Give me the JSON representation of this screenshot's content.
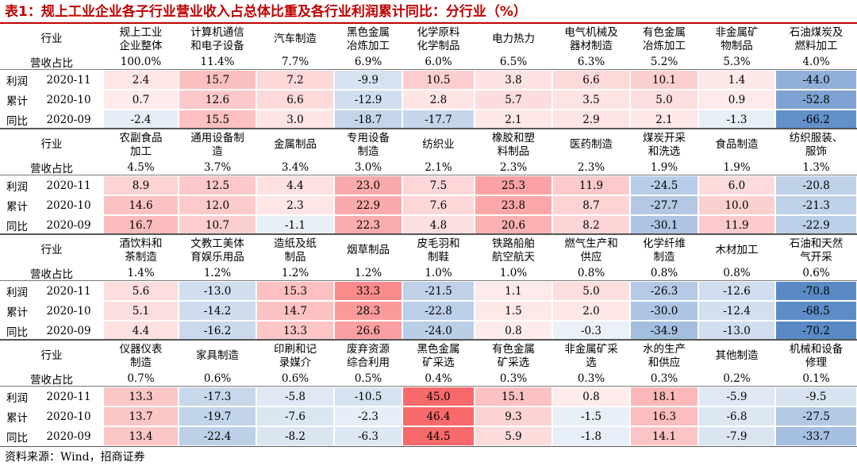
{
  "title": "表1：规上工业企业各子行业营业收入占总体比重及各行业利润累计同比：分行业（%）",
  "labels": {
    "industry": "行业",
    "revenue_share": "营收占比",
    "profit_label_lines": [
      "利润",
      "累计",
      "同比"
    ]
  },
  "months": [
    "2020-11",
    "2020-10",
    "2020-09"
  ],
  "colors": {
    "title": "#c00000",
    "positive": "#f8696b",
    "negative": "#5a8ac6"
  },
  "blocks": [
    {
      "industries": [
        "规上工业\n企业整体",
        "计算机通信\n和电子设备",
        "汽车制造",
        "黑色金属\n冶炼加工",
        "化学原料\n化学制品",
        "电力热力",
        "电气机械及\n器材制造",
        "有色金属\n冶炼加工",
        "非金属矿\n物制品",
        "石油煤炭及\n燃料加工"
      ],
      "shares": [
        "100.0%",
        "11.4%",
        "7.7%",
        "6.9%",
        "6.0%",
        "6.5%",
        "6.3%",
        "5.2%",
        "5.3%",
        "4.0%"
      ],
      "rows": [
        [
          "2.4",
          "15.7",
          "7.2",
          "-9.9",
          "10.5",
          "3.8",
          "6.6",
          "10.1",
          "1.4",
          "-44.0"
        ],
        [
          "0.7",
          "12.6",
          "6.6",
          "-12.9",
          "2.8",
          "5.7",
          "3.5",
          "5.0",
          "0.9",
          "-52.8"
        ],
        [
          "-2.4",
          "15.5",
          "3.0",
          "-18.7",
          "-17.7",
          "2.1",
          "2.9",
          "2.1",
          "-1.3",
          "-66.2"
        ]
      ]
    },
    {
      "industries": [
        "农副食品\n加工",
        "通用设备制\n造",
        "金属制品",
        "专用设备\n制造",
        "纺织业",
        "橡胶和塑\n料制品",
        "医药制造",
        "煤炭开采\n和洗选",
        "食品制造",
        "纺织服装、\n服饰"
      ],
      "shares": [
        "4.5%",
        "3.7%",
        "3.4%",
        "3.0%",
        "2.1%",
        "2.3%",
        "2.3%",
        "1.9%",
        "1.9%",
        "1.3%"
      ],
      "rows": [
        [
          "8.9",
          "12.5",
          "4.4",
          "23.0",
          "7.5",
          "25.3",
          "11.9",
          "-24.5",
          "6.0",
          "-20.8"
        ],
        [
          "14.6",
          "12.0",
          "2.3",
          "22.9",
          "7.6",
          "23.8",
          "8.7",
          "-27.7",
          "10.0",
          "-21.3"
        ],
        [
          "16.7",
          "10.7",
          "-1.1",
          "22.3",
          "4.8",
          "20.6",
          "8.2",
          "-30.1",
          "11.9",
          "-22.9"
        ]
      ]
    },
    {
      "industries": [
        "酒饮料和\n茶制造",
        "文教工美体\n育娱乐用品",
        "造纸及纸\n制品",
        "烟草制品",
        "皮毛羽和\n制鞋",
        "铁路船舶\n航空航天",
        "燃气生产和\n供应",
        "化学纤维\n制造",
        "木材加工",
        "石油和天然\n气开采"
      ],
      "shares": [
        "1.4%",
        "1.2%",
        "1.2%",
        "1.2%",
        "1.0%",
        "1.0%",
        "0.8%",
        "0.8%",
        "0.8%",
        "0.6%"
      ],
      "rows": [
        [
          "5.6",
          "-13.0",
          "15.3",
          "33.3",
          "-21.5",
          "1.1",
          "5.0",
          "-26.3",
          "-12.6",
          "-70.8"
        ],
        [
          "5.1",
          "-14.2",
          "14.7",
          "28.3",
          "-22.8",
          "1.5",
          "2.0",
          "-30.0",
          "-12.4",
          "-68.5"
        ],
        [
          "4.4",
          "-16.2",
          "13.3",
          "26.6",
          "-24.0",
          "0.8",
          "-0.3",
          "-34.9",
          "-13.0",
          "-70.2"
        ]
      ]
    },
    {
      "industries": [
        "仪器仪表\n制造",
        "家具制造",
        "印刷和记\n录媒介",
        "废弃资源\n综合利用",
        "黑色金属\n矿采选",
        "有色金属\n矿采选",
        "非金属矿采\n选",
        "水的生产\n和供应",
        "其他制造",
        "机械和设备\n修理"
      ],
      "shares": [
        "0.7%",
        "0.6%",
        "0.6%",
        "0.5%",
        "0.4%",
        "0.3%",
        "0.3%",
        "0.3%",
        "0.2%",
        "0.1%"
      ],
      "rows": [
        [
          "13.3",
          "-17.3",
          "-5.8",
          "-10.5",
          "45.0",
          "15.1",
          "0.8",
          "18.1",
          "-5.9",
          "-9.5"
        ],
        [
          "13.7",
          "-19.7",
          "-7.6",
          "-2.3",
          "46.4",
          "9.3",
          "-1.5",
          "16.3",
          "-6.8",
          "-27.5"
        ],
        [
          "13.4",
          "-22.4",
          "-8.2",
          "-6.3",
          "44.5",
          "5.9",
          "-1.8",
          "14.1",
          "-7.9",
          "-33.7"
        ]
      ]
    }
  ],
  "source": "资料来源：Wind，招商证券"
}
